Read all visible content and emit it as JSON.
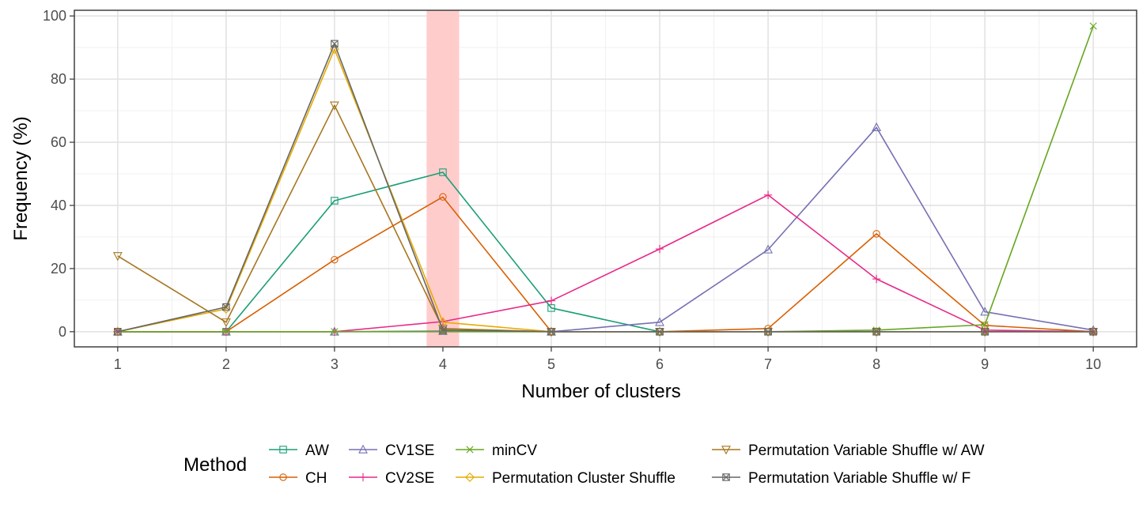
{
  "chart_data": {
    "type": "line",
    "xlabel": "Number of clusters",
    "ylabel": "Frequency (%)",
    "x": [
      1,
      2,
      3,
      4,
      5,
      6,
      7,
      8,
      9,
      10
    ],
    "xlim": [
      0.6,
      10.4
    ],
    "ylim": [
      -4.8,
      101.8
    ],
    "y_ticks": [
      0,
      20,
      40,
      60,
      80,
      100
    ],
    "highlight_band": {
      "x_from": 3.85,
      "x_to": 4.15,
      "color": "#ffcccc"
    },
    "grid": true,
    "legend": {
      "title": "Method",
      "position": "bottom"
    },
    "series": [
      {
        "name": "AW",
        "color": "#1b9e77",
        "marker": "square",
        "values": [
          0,
          0,
          41.5,
          50.5,
          7.5,
          0,
          0,
          0,
          0,
          0
        ]
      },
      {
        "name": "CH",
        "color": "#d95f02",
        "marker": "circle",
        "values": [
          0,
          0,
          22.8,
          42.7,
          0,
          0,
          1.0,
          31.0,
          2.0,
          0
        ]
      },
      {
        "name": "CV1SE",
        "color": "#7570b3",
        "marker": "triangle-up",
        "values": [
          0,
          0,
          0,
          0.2,
          0,
          3.0,
          26.0,
          64.7,
          6.3,
          0.5
        ]
      },
      {
        "name": "CV2SE",
        "color": "#e7298a",
        "marker": "plus",
        "values": [
          0,
          0,
          0,
          3.2,
          9.8,
          26.2,
          43.3,
          16.7,
          0.5,
          0
        ]
      },
      {
        "name": "minCV",
        "color": "#66a61e",
        "marker": "x",
        "values": [
          0,
          0,
          0,
          0,
          0,
          0,
          0,
          0.5,
          2.2,
          96.8
        ]
      },
      {
        "name": "Permutation Cluster Shuffle",
        "color": "#e6ab02",
        "marker": "diamond",
        "values": [
          0,
          7.2,
          89.5,
          3.0,
          0,
          0,
          0,
          0,
          0,
          0
        ]
      },
      {
        "name": "Permutation Variable Shuffle w/ AW",
        "color": "#a6761d",
        "marker": "triangle-down",
        "values": [
          24.0,
          3.0,
          71.7,
          1.0,
          0,
          0,
          0,
          0,
          0,
          0
        ]
      },
      {
        "name": "Permutation Variable Shuffle w/ F",
        "color": "#666666",
        "marker": "square-x",
        "values": [
          0,
          7.8,
          91.2,
          0.5,
          0,
          0,
          0,
          0,
          0,
          0
        ]
      }
    ]
  }
}
